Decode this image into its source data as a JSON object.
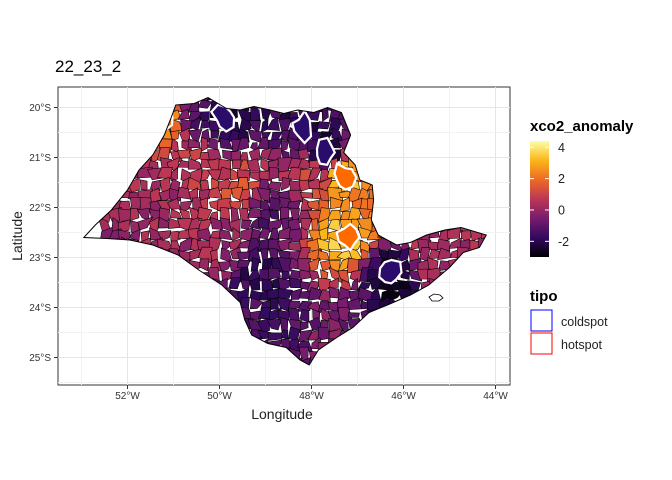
{
  "plot": {
    "title": "22_23_2",
    "xlabel": "Longitude",
    "ylabel": "Latitude"
  },
  "axes": {
    "x_ticks": [
      "52°W",
      "50°W",
      "48°W",
      "46°W",
      "44°W"
    ],
    "y_ticks": [
      "20°S",
      "21°S",
      "22°S",
      "23°S",
      "24°S",
      "25°S"
    ]
  },
  "legend": {
    "fill_title": "xco2_anomaly",
    "fill_labels": [
      "4",
      "2",
      "0",
      "-2"
    ],
    "fill_colors": [
      "#000004",
      "#320a5e",
      "#781c6d",
      "#bc3754",
      "#ed6925",
      "#fbb61a",
      "#fcffa4"
    ],
    "tipo_title": "tipo",
    "tipo_items": [
      {
        "label": "coldspot",
        "color": "#0000ff"
      },
      {
        "label": "hotspot",
        "color": "#ff0000"
      }
    ]
  },
  "chart_data": {
    "type": "heatmap",
    "title": "22_23_2",
    "xlabel": "Longitude",
    "ylabel": "Latitude",
    "xlim": [
      -53.5,
      -43.8
    ],
    "ylim": [
      -25.6,
      -19.6
    ],
    "grid": true,
    "legend_position": "right",
    "colorscale": "inferno",
    "color_range": [
      -3,
      4.4
    ],
    "regions": [
      {
        "lon": -51.2,
        "lat": -20.2,
        "value": 2.6,
        "tipo": "hotspot"
      },
      {
        "lon": -50.5,
        "lat": -20.1,
        "value": -1.2
      },
      {
        "lon": -49.9,
        "lat": -20.2,
        "value": -2.2,
        "tipo": "coldspot"
      },
      {
        "lon": -48.2,
        "lat": -20.4,
        "value": -1.8,
        "tipo": "coldspot"
      },
      {
        "lon": -47.7,
        "lat": -20.9,
        "value": -2.3,
        "tipo": "coldspot"
      },
      {
        "lon": -47.3,
        "lat": -21.4,
        "value": 3.1,
        "tipo": "hotspot"
      },
      {
        "lon": -47.0,
        "lat": -22.2,
        "value": 2.4
      },
      {
        "lon": -47.2,
        "lat": -22.6,
        "value": 3.4,
        "tipo": "hotspot"
      },
      {
        "lon": -46.3,
        "lat": -23.3,
        "value": -2.5,
        "tipo": "coldspot"
      },
      {
        "lon": -48.9,
        "lat": -22.0,
        "value": -1.1
      },
      {
        "lon": -49.2,
        "lat": -23.4,
        "value": -1.6
      },
      {
        "lon": -48.6,
        "lat": -24.3,
        "value": -1.4
      },
      {
        "lon": -50.5,
        "lat": -21.2,
        "value": 0.6
      },
      {
        "lon": -51.5,
        "lat": -21.5,
        "value": 0.2
      },
      {
        "lon": -52.3,
        "lat": -22.3,
        "value": 0.0
      },
      {
        "lon": -50.8,
        "lat": -22.3,
        "value": 0.3
      },
      {
        "lon": -49.6,
        "lat": -21.6,
        "value": 1.2
      },
      {
        "lon": -48.0,
        "lat": -21.3,
        "value": 1.0
      },
      {
        "lon": -45.4,
        "lat": -22.9,
        "value": 0.4
      },
      {
        "lon": -44.6,
        "lat": -22.6,
        "value": 0.2
      },
      {
        "lon": -47.6,
        "lat": -24.6,
        "value": -0.6
      },
      {
        "lon": -50.0,
        "lat": -22.8,
        "value": 0.1
      }
    ]
  }
}
